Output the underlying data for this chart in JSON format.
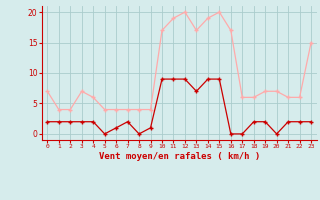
{
  "hours": [
    0,
    1,
    2,
    3,
    4,
    5,
    6,
    7,
    8,
    9,
    10,
    11,
    12,
    13,
    14,
    15,
    16,
    17,
    18,
    19,
    20,
    21,
    22,
    23
  ],
  "wind_avg": [
    2,
    2,
    2,
    2,
    2,
    0,
    1,
    2,
    0,
    1,
    9,
    9,
    9,
    7,
    9,
    9,
    0,
    0,
    2,
    2,
    0,
    2,
    2,
    2
  ],
  "wind_gust": [
    7,
    4,
    4,
    7,
    6,
    4,
    4,
    4,
    4,
    4,
    17,
    19,
    20,
    17,
    19,
    20,
    17,
    6,
    6,
    7,
    7,
    6,
    6,
    15
  ],
  "color_avg": "#cc0000",
  "color_gust": "#ffaaaa",
  "bg_color": "#d6ecec",
  "grid_color": "#aacccc",
  "xlabel": "Vent moyen/en rafales ( km/h )",
  "yticks": [
    0,
    5,
    10,
    15,
    20
  ],
  "ylim": [
    -1,
    21
  ],
  "xlim": [
    -0.5,
    23.5
  ],
  "xticks": [
    0,
    1,
    2,
    3,
    4,
    5,
    6,
    7,
    8,
    9,
    10,
    11,
    12,
    13,
    14,
    15,
    16,
    17,
    18,
    19,
    20,
    21,
    22,
    23
  ]
}
